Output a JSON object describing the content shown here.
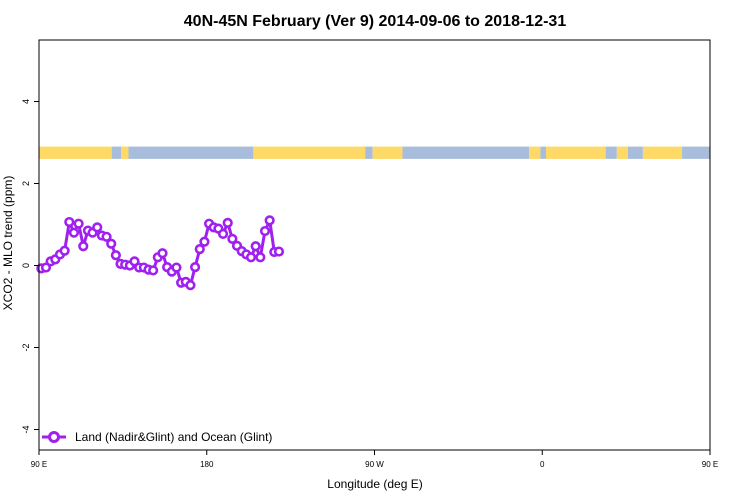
{
  "chart_data": {
    "type": "line",
    "title": "40N-45N February (Ver 9)   2014-09-06 to 2018-12-31",
    "xlabel": "Longitude (deg E)",
    "ylabel": "XCO2 - MLO trend (ppm)",
    "xlim": [
      90,
      450
    ],
    "ylim": [
      -4.5,
      5.5
    ],
    "x_ticks": [
      {
        "value": 90,
        "label": "90 E"
      },
      {
        "value": 180,
        "label": "180"
      },
      {
        "value": 270,
        "label": "90 W"
      },
      {
        "value": 360,
        "label": "0"
      },
      {
        "value": 450,
        "label": "90 E"
      },
      {
        "value": 540,
        "label": "180"
      }
    ],
    "x_ticks_note": "",
    "y_ticks": [
      {
        "value": -4,
        "label": "-4"
      },
      {
        "value": -2,
        "label": "-2"
      },
      {
        "value": 0,
        "label": "0"
      },
      {
        "value": 2,
        "label": "2"
      },
      {
        "value": 4,
        "label": "4"
      }
    ],
    "grid": false,
    "legend_position": "bottom-left",
    "surface_band": {
      "y_range": [
        2.6,
        2.9
      ],
      "land_color": "#FFD966",
      "ocean_color": "#A7BDDB",
      "segments": [
        {
          "from": 90,
          "to": 129,
          "type": "land"
        },
        {
          "from": 129,
          "to": 134,
          "type": "ocean"
        },
        {
          "from": 134,
          "to": 138,
          "type": "land"
        },
        {
          "from": 138,
          "to": 205,
          "type": "ocean"
        },
        {
          "from": 205,
          "to": 265,
          "type": "land"
        },
        {
          "from": 265,
          "to": 269,
          "type": "ocean"
        },
        {
          "from": 269,
          "to": 285,
          "type": "land"
        },
        {
          "from": 285,
          "to": 353,
          "type": "ocean"
        },
        {
          "from": 353,
          "to": 359,
          "type": "land"
        },
        {
          "from": 359,
          "to": 362,
          "type": "ocean"
        },
        {
          "from": 362,
          "to": 394,
          "type": "land"
        },
        {
          "from": 394,
          "to": 400,
          "type": "ocean"
        },
        {
          "from": 400,
          "to": 406,
          "type": "land"
        },
        {
          "from": 406,
          "to": 414,
          "type": "ocean"
        },
        {
          "from": 414,
          "to": 435,
          "type": "land"
        },
        {
          "from": 435,
          "to": 450,
          "type": "ocean"
        }
      ]
    },
    "series": [
      {
        "name": "Land (Nadir&Glint) and Ocean (Glint)",
        "color": "#A020F0",
        "segments": [
          {
            "x": [
              91.25,
              93.75,
              96.25,
              98.75,
              101.25,
              103.75,
              106.25,
              108.75,
              111.25,
              113.75,
              116.25,
              118.75,
              121.25,
              123.75,
              126.25,
              128.75,
              131.25,
              133.75,
              136.25,
              138.75,
              141.25,
              143.75,
              146.25,
              148.75,
              151.25,
              153.75,
              156.25,
              158.75,
              161.25,
              163.75,
              166.25,
              168.75,
              171.25,
              173.75,
              176.25,
              178.75,
              181.25,
              183.75,
              186.25,
              188.75,
              191.25,
              193.75,
              196.25,
              198.75,
              201.25,
              203.75,
              206.25,
              208.75,
              211.25,
              213.75,
              216.25,
              218.75
            ],
            "y": [
              -0.07,
              -0.05,
              0.1,
              0.15,
              0.27,
              0.36,
              1.06,
              0.8,
              1.02,
              0.47,
              0.85,
              0.8,
              0.93,
              0.73,
              0.7,
              0.53,
              0.25,
              0.04,
              0.02,
              0.0,
              0.1,
              -0.05,
              -0.05,
              -0.1,
              -0.12,
              0.2,
              0.3,
              -0.04,
              -0.15,
              -0.05,
              -0.42,
              -0.4,
              -0.48,
              -0.04,
              0.4,
              0.58,
              1.02,
              0.93,
              0.9,
              0.77,
              1.04,
              0.65,
              0.48,
              0.35,
              0.27,
              0.2,
              0.47,
              0.2,
              0.84,
              1.1,
              0.33,
              0.34
            ]
          }
        ]
      }
    ]
  },
  "legend": {
    "label": "Land (Nadir&Glint) and Ocean (Glint)"
  }
}
